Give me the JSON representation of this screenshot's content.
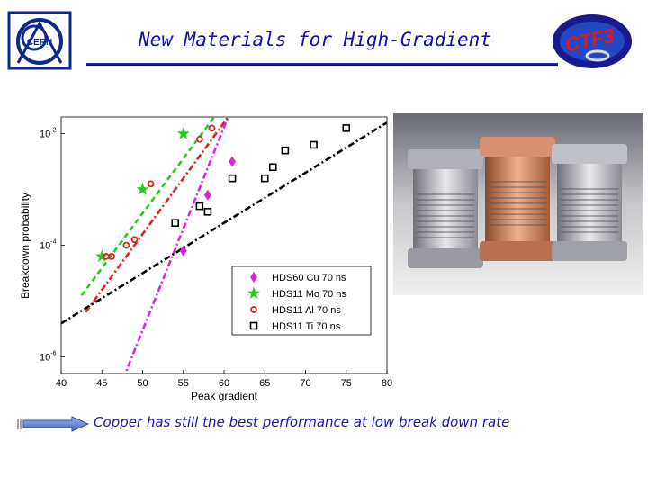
{
  "slide": {
    "title": "New Materials for High-Gradient",
    "caption": "Copper has still the best performance at low break down rate",
    "logos": {
      "left": "CERN",
      "right": "CTF3"
    },
    "accent_color": "#1010a8"
  },
  "chart_data": {
    "type": "scatter",
    "xlabel": "Peak gradient",
    "ylabel": "Breakdown probability",
    "xlim": [
      40,
      80
    ],
    "ylim_log10": [
      -6.3,
      -1.7
    ],
    "log_y": true,
    "xticks": [
      40,
      45,
      50,
      55,
      60,
      65,
      70,
      75,
      80
    ],
    "ytick_labels": [
      {
        "base": "10",
        "exp": "-2",
        "log10": -2
      },
      {
        "base": "10",
        "exp": "-4",
        "log10": -4
      },
      {
        "base": "10",
        "exp": "-6",
        "log10": -6
      }
    ],
    "grid": false,
    "legend_position": "bottom-right",
    "series": [
      {
        "name": "HDS60 Cu 70 ns",
        "color": "#dd22dd",
        "marker": "diamond",
        "dash": "dashdot",
        "points": [
          [
            55,
            -4.1
          ],
          [
            58,
            -3.1
          ],
          [
            61,
            -2.5
          ]
        ],
        "fit": [
          [
            47.6,
            -6.4
          ],
          [
            60.5,
            -1.7
          ]
        ]
      },
      {
        "name": "HDS11 Mo 70 ns",
        "color": "#22cc22",
        "marker": "star",
        "dash": "dashed",
        "points": [
          [
            45,
            -4.2
          ],
          [
            50,
            -3.0
          ],
          [
            55,
            -2.0
          ]
        ],
        "fit": [
          [
            42.5,
            -4.9
          ],
          [
            58.8,
            -1.7
          ]
        ]
      },
      {
        "name": "HDS11 Al 70 ns",
        "color": "#dd2222",
        "marker": "circle",
        "dash": "dashdot",
        "points": [
          [
            45.5,
            -4.2
          ],
          [
            46.2,
            -4.2
          ],
          [
            48,
            -4.0
          ],
          [
            49,
            -3.9
          ],
          [
            51,
            -2.9
          ],
          [
            57,
            -2.1
          ],
          [
            58.5,
            -1.9
          ]
        ],
        "fit": [
          [
            43,
            -5.2
          ],
          [
            60.5,
            -1.7
          ]
        ]
      },
      {
        "name": "HDS11 Ti 70 ns",
        "color": "#000000",
        "marker": "square",
        "dash": "dashdot",
        "points": [
          [
            54,
            -3.6
          ],
          [
            57,
            -3.3
          ],
          [
            58,
            -3.4
          ],
          [
            61,
            -2.8
          ],
          [
            65,
            -2.8
          ],
          [
            66,
            -2.6
          ],
          [
            67.5,
            -2.3
          ],
          [
            71,
            -2.2
          ],
          [
            75,
            -1.9
          ]
        ],
        "fit": [
          [
            40,
            -5.4
          ],
          [
            80,
            -1.8
          ]
        ]
      }
    ]
  }
}
